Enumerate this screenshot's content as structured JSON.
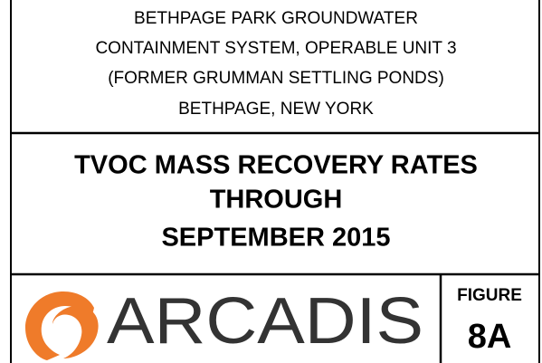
{
  "header": {
    "lines": [
      "BETHPAGE PARK GROUNDWATER",
      "CONTAINMENT SYSTEM, OPERABLE UNIT 3",
      "(FORMER GRUMMAN SETTLING PONDS)",
      "BETHPAGE, NEW YORK"
    ]
  },
  "title": {
    "lines": [
      "TVOC MASS RECOVERY RATES",
      "THROUGH",
      "SEPTEMBER 2015"
    ]
  },
  "logo": {
    "text": "ARCADIS"
  },
  "figure": {
    "label": "FIGURE",
    "number": "8A"
  }
}
